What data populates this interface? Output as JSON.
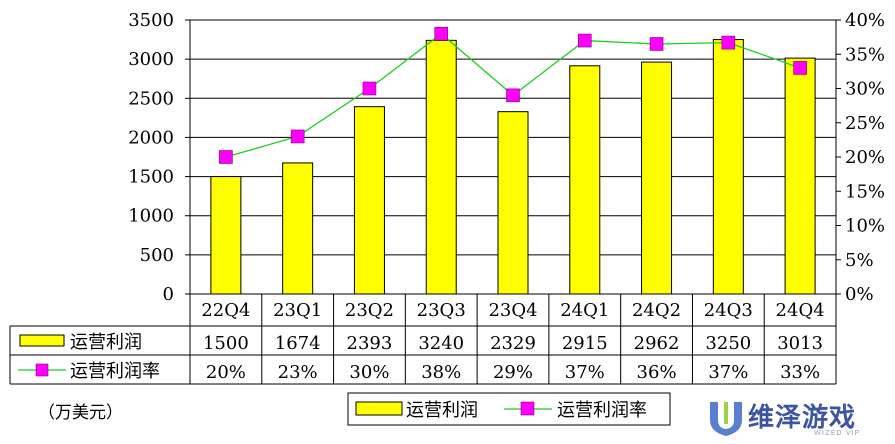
{
  "chart_data": {
    "type": "bar",
    "categories": [
      "22Q4",
      "23Q1",
      "23Q2",
      "23Q3",
      "23Q4",
      "24Q1",
      "24Q2",
      "24Q3",
      "24Q4"
    ],
    "series": [
      {
        "name": "运营利润",
        "kind": "bar",
        "axis": "left",
        "values": [
          1500,
          1674,
          2393,
          3240,
          2329,
          2915,
          2962,
          3250,
          3013
        ],
        "labels": [
          "1500",
          "1674",
          "2393",
          "3240",
          "2329",
          "2915",
          "2962",
          "3250",
          "3013"
        ],
        "color": "#ffff00"
      },
      {
        "name": "运营利润率",
        "kind": "line",
        "axis": "right",
        "values": [
          0.2,
          0.23,
          0.3,
          0.38,
          0.29,
          0.37,
          0.365,
          0.367,
          0.33
        ],
        "labels": [
          "20%",
          "23%",
          "30%",
          "38%",
          "29%",
          "37%",
          "36%",
          "37%",
          "33%"
        ],
        "color": "#22cc22",
        "marker_color": "#ff00ff"
      }
    ],
    "y_left": {
      "lim": [
        0,
        3500
      ],
      "ticks": [
        "0",
        "500",
        "1000",
        "1500",
        "2000",
        "2500",
        "3000",
        "3500"
      ]
    },
    "y_right": {
      "lim": [
        0,
        0.4
      ],
      "ticks": [
        "0%",
        "5%",
        "10%",
        "15%",
        "20%",
        "25%",
        "30%",
        "35%",
        "40%"
      ]
    },
    "grid": true,
    "legend_position": "bottom"
  },
  "unit_label": "（万美元）",
  "watermark": {
    "text": "维泽游戏",
    "sub": "WIZED VIP",
    "color": "#3b55a3"
  }
}
